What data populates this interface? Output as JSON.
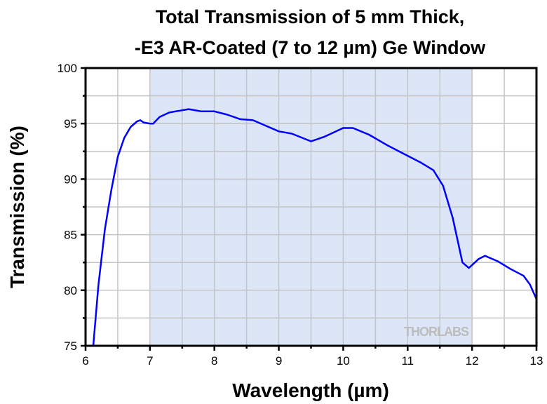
{
  "chart_data": {
    "type": "line",
    "title": [
      "Total Transmission of 5 mm Thick,",
      "-E3 AR-Coated (7 to 12 µm) Ge Window"
    ],
    "xlabel": "Wavelength (µm)",
    "ylabel": "Transmission (%)",
    "xlim": [
      6,
      13
    ],
    "ylim": [
      75,
      100
    ],
    "xticks": [
      "6",
      "7",
      "8",
      "9",
      "10",
      "11",
      "12",
      "13"
    ],
    "yticks": [
      "75",
      "80",
      "85",
      "90",
      "95",
      "100"
    ],
    "grid": true,
    "shaded_band": [
      7,
      12
    ],
    "watermark": "THORLABS",
    "colors": {
      "line": "#0000ff",
      "band": "#dde6f6",
      "grid": "#c4c4c4"
    },
    "series": [
      {
        "name": "Transmission",
        "x": [
          6.12,
          6.2,
          6.3,
          6.4,
          6.5,
          6.6,
          6.7,
          6.8,
          6.85,
          6.9,
          7.0,
          7.05,
          7.15,
          7.3,
          7.5,
          7.6,
          7.8,
          8.0,
          8.2,
          8.4,
          8.6,
          8.8,
          9.0,
          9.2,
          9.5,
          9.7,
          10.0,
          10.15,
          10.4,
          10.7,
          11.0,
          11.2,
          11.4,
          11.55,
          11.7,
          11.85,
          11.95,
          12.1,
          12.2,
          12.4,
          12.6,
          12.8,
          12.9,
          13.0
        ],
        "y": [
          75,
          80.5,
          85.5,
          89,
          92,
          93.7,
          94.7,
          95.2,
          95.3,
          95.1,
          95.0,
          95.0,
          95.6,
          96.0,
          96.2,
          96.3,
          96.1,
          96.1,
          95.8,
          95.4,
          95.3,
          94.8,
          94.3,
          94.1,
          93.4,
          93.8,
          94.6,
          94.6,
          94.0,
          93.0,
          92.1,
          91.5,
          90.8,
          89.4,
          86.5,
          82.5,
          82.0,
          82.8,
          83.1,
          82.6,
          81.9,
          81.3,
          80.5,
          79.2
        ]
      }
    ]
  }
}
